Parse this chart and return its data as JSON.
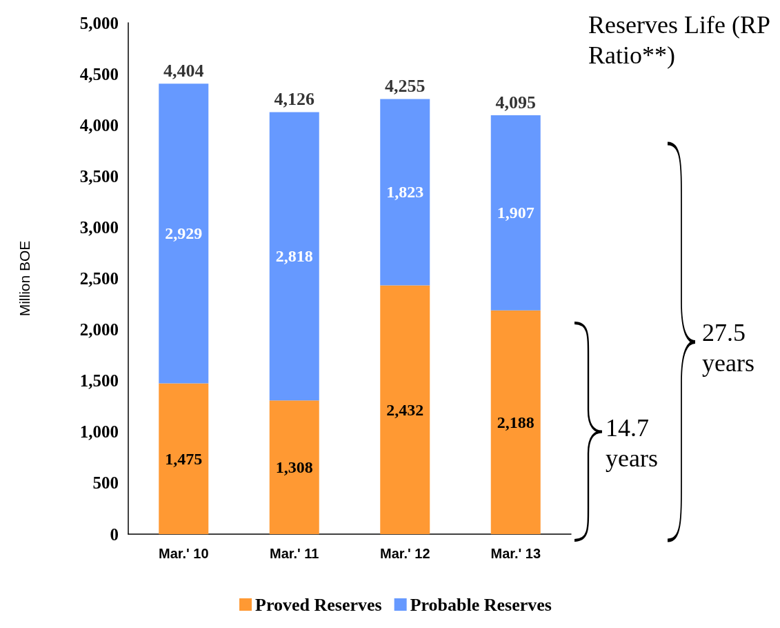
{
  "chart_data": {
    "type": "bar",
    "stacked": true,
    "ylabel": "Million BOE",
    "categories": [
      "Mar.' 10",
      "Mar.' 11",
      "Mar.' 12",
      "Mar.' 13"
    ],
    "series": [
      {
        "name": "Proved Reserves",
        "color": "#ff9933",
        "values": [
          1475,
          1308,
          2432,
          2188
        ],
        "value_labels": [
          "1,475",
          "1,308",
          "2,432",
          "2,188"
        ]
      },
      {
        "name": "Probable Reserves",
        "color": "#6699ff",
        "values": [
          2929,
          2818,
          1823,
          1907
        ],
        "value_labels": [
          "2,929",
          "2,818",
          "1,823",
          "1,907"
        ]
      }
    ],
    "totals": [
      "4,404",
      "4,126",
      "4,255",
      "4,095"
    ],
    "ylim": [
      0,
      5000
    ],
    "yticks": [
      {
        "value": 0,
        "label": "0"
      },
      {
        "value": 500,
        "label": "500"
      },
      {
        "value": 1000,
        "label": "1,000"
      },
      {
        "value": 1500,
        "label": "1,500"
      },
      {
        "value": 2000,
        "label": "2,000"
      },
      {
        "value": 2500,
        "label": "2,500"
      },
      {
        "value": 3000,
        "label": "3,000"
      },
      {
        "value": 3500,
        "label": "3,500"
      },
      {
        "value": 4000,
        "label": "4,000"
      },
      {
        "value": 4500,
        "label": "4,500"
      },
      {
        "value": 5000,
        "label": "5,000"
      }
    ],
    "grid": false,
    "legend": "bottom",
    "annotations": [
      "Reserves Life (RP Ratio**)",
      "27.5 years",
      "14.7 years"
    ]
  }
}
